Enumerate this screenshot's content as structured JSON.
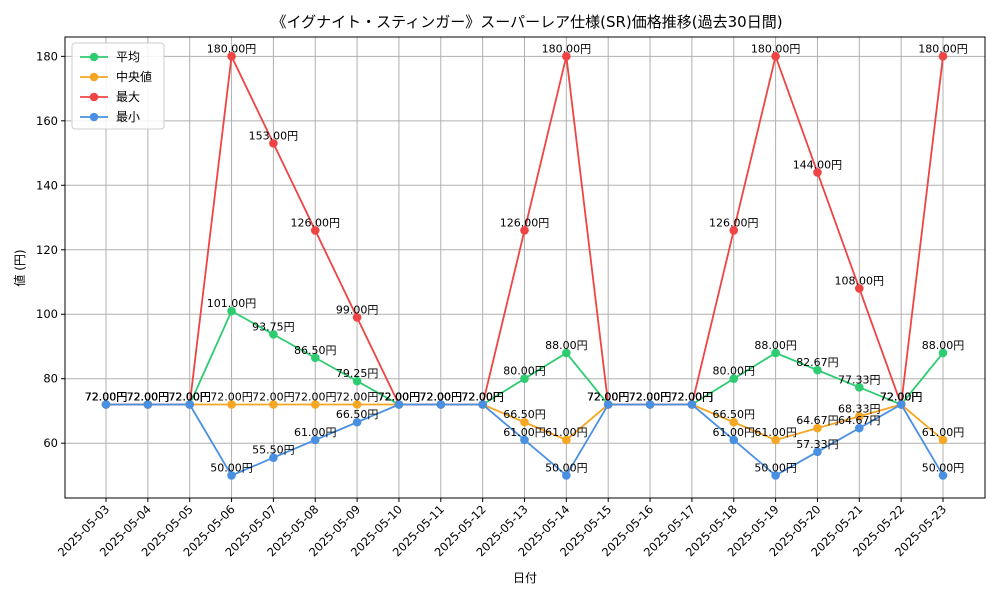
{
  "chart_data": {
    "type": "line",
    "title": "《イグナイト・スティンガー》スーパーレア仕様(SR)価格推移(過去30日間)",
    "xlabel": "日付",
    "ylabel": "値 (円)",
    "ylim": [
      43,
      186
    ],
    "yticks": [
      60,
      80,
      100,
      120,
      140,
      160,
      180
    ],
    "ytick_labels": [
      "60",
      "80",
      "100",
      "120",
      "140",
      "160",
      "180"
    ],
    "grid": true,
    "legend_position": "top-left",
    "label_suffix": "円",
    "categories": [
      "2025-05-03",
      "2025-05-04",
      "2025-05-05",
      "2025-05-06",
      "2025-05-07",
      "2025-05-08",
      "2025-05-09",
      "2025-05-10",
      "2025-05-11",
      "2025-05-12",
      "2025-05-13",
      "2025-05-14",
      "2025-05-15",
      "2025-05-16",
      "2025-05-17",
      "2025-05-18",
      "2025-05-19",
      "2025-05-20",
      "2025-05-21",
      "2025-05-22",
      "2025-05-23"
    ],
    "series": [
      {
        "name": "平均",
        "color": "#2ecc71",
        "values": [
          72,
          72,
          72,
          101,
          93.75,
          86.5,
          79.25,
          72,
          72,
          72,
          80,
          88,
          72,
          72,
          72,
          80,
          88,
          82.67,
          77.33,
          72,
          88
        ],
        "labels": [
          "72.00円",
          "72.00円",
          "72.00円",
          "101.00円",
          "93.75円",
          "86.50円",
          "79.25円",
          "72.00円",
          "72.00円",
          "72.00円",
          "80.00円",
          "88.00円",
          "72.00円",
          "72.00円",
          "72.00円",
          "80.00円",
          "88.00円",
          "82.67円",
          "77.33円",
          "72.00円",
          "88.00円"
        ]
      },
      {
        "name": "中央値",
        "color": "#f5a623",
        "values": [
          72,
          72,
          72,
          72,
          72,
          72,
          72,
          72,
          72,
          72,
          66.5,
          61,
          72,
          72,
          72,
          66.5,
          61,
          64.67,
          68.33,
          72,
          61
        ],
        "labels": [
          "72.00円",
          "72.00円",
          "72.00円",
          "72.00円",
          "72.00円",
          "72.00円",
          "72.00円",
          "72.00円",
          "72.00円",
          "72.00円",
          "66.50円",
          "61.00円",
          "72.00円",
          "72.00円",
          "72.00円",
          "66.50円",
          "61.00円",
          "64.67円",
          "68.33円",
          "72.00円",
          "61.00円"
        ]
      },
      {
        "name": "最大",
        "color": "#ef4444",
        "values": [
          72,
          72,
          72,
          180,
          153,
          126,
          99,
          72,
          72,
          72,
          126,
          180,
          72,
          72,
          72,
          126,
          180,
          144,
          108,
          72,
          180
        ],
        "labels": [
          "72.00円",
          "72.00円",
          "72.00円",
          "180.00円",
          "153.00円",
          "126.00円",
          "99.00円",
          "72.00円",
          "72.00円",
          "72.00円",
          "126.00円",
          "180.00円",
          "72.00円",
          "72.00円",
          "72.00円",
          "126.00円",
          "180.00円",
          "144.00円",
          "108.00円",
          "72.00円",
          "180.00円"
        ]
      },
      {
        "name": "最小",
        "color": "#4a90e2",
        "values": [
          72,
          72,
          72,
          50,
          55.5,
          61,
          66.5,
          72,
          72,
          72,
          61,
          50,
          72,
          72,
          72,
          61,
          50,
          57.33,
          64.67,
          72,
          50
        ],
        "labels": [
          "72.00円",
          "72.00円",
          "72.00円",
          "50.00円",
          "55.50円",
          "61.00円",
          "66.50円",
          "72.00円",
          "72.00円",
          "72.00円",
          "61.00円",
          "50.00円",
          "72.00円",
          "72.00円",
          "72.00円",
          "61.00円",
          "50.00円",
          "57.33円",
          "64.67円",
          "72.00円",
          "50.00円"
        ]
      }
    ]
  }
}
